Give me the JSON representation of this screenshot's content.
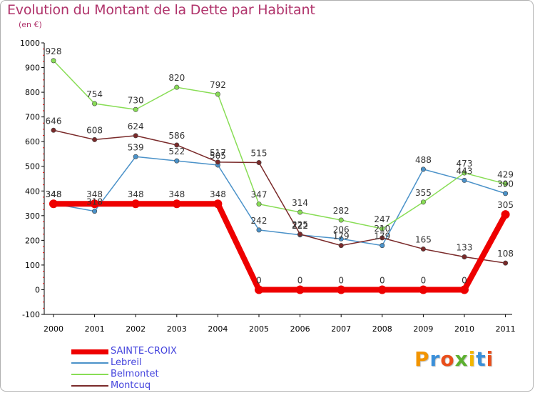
{
  "title": "Evolution du Montant de la Dette par Habitant",
  "subtitle": "(en €)",
  "logo": {
    "text": "Proxiti",
    "colors": [
      "#f29400",
      "#3a8fd9",
      "#e94e1b",
      "#5cb030",
      "#f2b600",
      "#3a8fd9",
      "#e94e1b"
    ]
  },
  "chart_data": {
    "type": "line",
    "x": [
      "2000",
      "2001",
      "2002",
      "2003",
      "2004",
      "2005",
      "2006",
      "2007",
      "2008",
      "2009",
      "2010",
      "2011"
    ],
    "ylim": [
      -100,
      1000
    ],
    "yticks": [
      "-100",
      "0",
      "100",
      "200",
      "300",
      "400",
      "500",
      "600",
      "700",
      "800",
      "900",
      "1000"
    ],
    "grid": false,
    "legend_position": "bottom-left",
    "series": [
      {
        "name": "SAINTE-CROIX",
        "color": "#ee0000",
        "values": [
          348,
          348,
          348,
          348,
          348,
          0,
          0,
          0,
          0,
          0,
          0,
          305
        ],
        "labels": [
          "348",
          "348",
          "348",
          "348",
          "348",
          "0",
          "0",
          "0",
          "0",
          "0",
          "0",
          "305"
        ]
      },
      {
        "name": "Lebreil",
        "color": "#4b92c9",
        "values": [
          348,
          318,
          539,
          522,
          505,
          242,
          222,
          206,
          179,
          488,
          443,
          390
        ],
        "labels": [
          "348",
          "318",
          "539",
          "522",
          "505",
          "242",
          "222",
          "206",
          "179",
          "488",
          "443",
          "390"
        ]
      },
      {
        "name": "Belmontet",
        "color": "#88dd55",
        "values": [
          928,
          754,
          730,
          820,
          792,
          347,
          314,
          282,
          247,
          355,
          473,
          429
        ],
        "labels": [
          "928",
          "754",
          "730",
          "820",
          "792",
          "347",
          "314",
          "282",
          "247",
          "355",
          "473",
          "429"
        ]
      },
      {
        "name": "Montcuq",
        "color": "#7a2a2a",
        "values": [
          646,
          608,
          624,
          586,
          517,
          515,
          225,
          179,
          210,
          165,
          133,
          108
        ],
        "labels": [
          "646",
          "608",
          "624",
          "586",
          "517",
          "515",
          "225",
          "179",
          "210",
          "165",
          "133",
          "108"
        ]
      }
    ]
  }
}
